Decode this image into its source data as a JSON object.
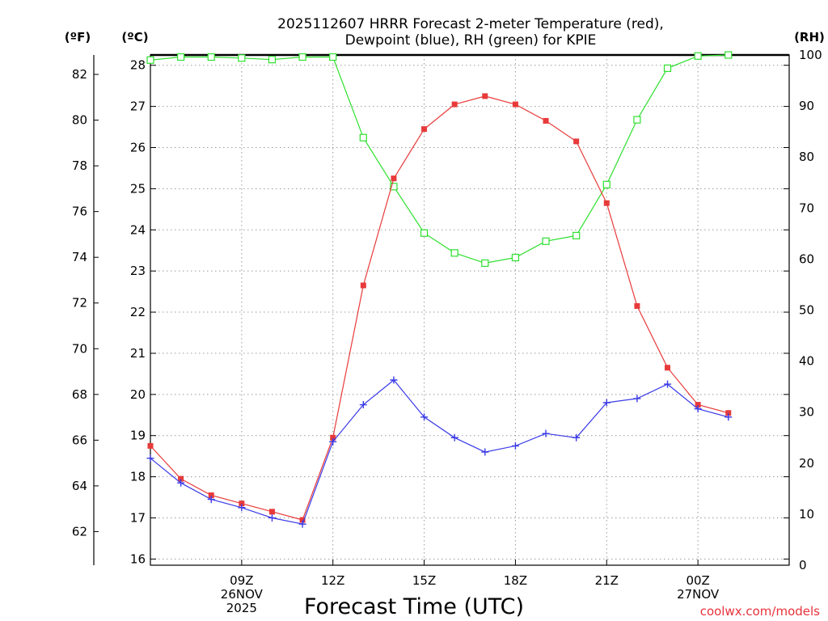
{
  "chart_data": {
    "type": "line",
    "title_line1": "2025112607 HRRR Forecast 2-meter Temperature (red),",
    "title_line2": "Dewpoint (blue), RH (green) for KPIE",
    "xlabel": "Forecast Time (UTC)",
    "credit": "coolwx.com/models",
    "units": {
      "fahrenheit": "(ºF)",
      "celsius": "(ºC)",
      "rh": "(RH)"
    },
    "x_range": [
      6,
      27
    ],
    "x_ticks": [
      {
        "x": 9,
        "lines": [
          "09Z",
          "26NOV",
          "2025"
        ]
      },
      {
        "x": 12,
        "lines": [
          "12Z"
        ]
      },
      {
        "x": 15,
        "lines": [
          "15Z"
        ]
      },
      {
        "x": 18,
        "lines": [
          "18Z"
        ]
      },
      {
        "x": 21,
        "lines": [
          "21Z"
        ]
      },
      {
        "x": 24,
        "lines": [
          "00Z",
          "27NOV"
        ]
      }
    ],
    "celsius_range": [
      15.85,
      28.25
    ],
    "celsius_ticks": [
      "16",
      "17",
      "18",
      "19",
      "20",
      "21",
      "22",
      "23",
      "24",
      "25",
      "26",
      "27",
      "28"
    ],
    "fahrenheit_ticks": [
      "62",
      "64",
      "66",
      "68",
      "70",
      "72",
      "74",
      "76",
      "78",
      "80",
      "82"
    ],
    "rh_range": [
      0,
      100
    ],
    "rh_ticks": [
      "0",
      "10",
      "20",
      "30",
      "40",
      "50",
      "60",
      "70",
      "80",
      "90",
      "100"
    ],
    "series": [
      {
        "name": "Temperature",
        "axis": "celsius",
        "color": "#e83a3a",
        "marker": "filled-square",
        "x": [
          6,
          7,
          8,
          9,
          10,
          11,
          12,
          13,
          14,
          15,
          16,
          17,
          18,
          19,
          20,
          21,
          22,
          23,
          24,
          25
        ],
        "values": [
          18.75,
          17.95,
          17.55,
          17.35,
          17.15,
          16.95,
          18.95,
          22.65,
          25.25,
          26.45,
          27.05,
          27.25,
          27.05,
          26.65,
          26.15,
          24.65,
          22.15,
          20.65,
          19.75,
          19.55
        ]
      },
      {
        "name": "Dewpoint",
        "axis": "celsius",
        "color": "#3a3ae8",
        "marker": "plus",
        "x": [
          6,
          7,
          8,
          9,
          10,
          11,
          12,
          13,
          14,
          15,
          16,
          17,
          18,
          19,
          20,
          21,
          22,
          23,
          24,
          25
        ],
        "values": [
          18.45,
          17.85,
          17.45,
          17.25,
          17.0,
          16.85,
          18.85,
          19.75,
          20.35,
          19.45,
          18.95,
          18.6,
          18.75,
          19.05,
          18.95,
          19.8,
          19.9,
          20.25,
          19.65,
          19.45
        ]
      },
      {
        "name": "RH",
        "axis": "rh",
        "color": "#2ee02e",
        "marker": "open-square",
        "x": [
          6,
          7,
          8,
          9,
          10,
          11,
          12,
          13,
          14,
          15,
          16,
          17,
          18,
          19,
          20,
          21,
          22,
          23,
          24,
          25
        ],
        "values": [
          99,
          99.6,
          99.6,
          99.4,
          99.1,
          99.6,
          99.6,
          83.8,
          74.2,
          65.1,
          61.2,
          59.2,
          60.3,
          63.5,
          64.6,
          74.6,
          87.3,
          97.4,
          99.8,
          100
        ]
      }
    ]
  }
}
